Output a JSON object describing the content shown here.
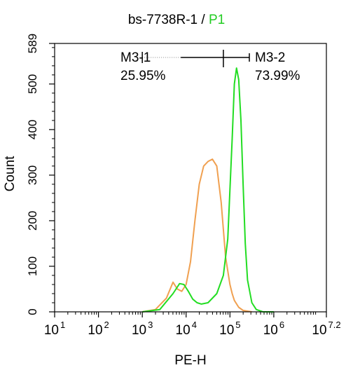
{
  "chart_data": {
    "type": "line",
    "title": {
      "main": "bs-7738R-1",
      "sep": " / ",
      "gate": "P1"
    },
    "xlabel": "PE-H",
    "ylabel": "Count",
    "x_scale": "log10",
    "xlim": [
      1,
      7.2
    ],
    "ylim": [
      0,
      589
    ],
    "x_ticks": [
      {
        "base": "10",
        "exp": "1",
        "value": 1
      },
      {
        "base": "10",
        "exp": "2",
        "value": 2
      },
      {
        "base": "10",
        "exp": "3",
        "value": 3
      },
      {
        "base": "10",
        "exp": "4",
        "value": 4
      },
      {
        "base": "10",
        "exp": "5",
        "value": 5
      },
      {
        "base": "10",
        "exp": "6",
        "value": 6
      },
      {
        "base": "10",
        "exp": "7.2",
        "value": 7.2
      }
    ],
    "y_ticks": [
      {
        "label": "0",
        "value": 0
      },
      {
        "label": "100",
        "value": 100
      },
      {
        "label": "200",
        "value": 200
      },
      {
        "label": "300",
        "value": 300
      },
      {
        "label": "400",
        "value": 400
      },
      {
        "label": "500",
        "value": 500
      },
      {
        "label": "589",
        "value": 589
      }
    ],
    "series": [
      {
        "color": "#f0a050",
        "x": [
          3.0,
          3.3,
          3.55,
          3.7,
          3.8,
          3.9,
          4.0,
          4.1,
          4.2,
          4.3,
          4.4,
          4.5,
          4.6,
          4.7,
          4.8,
          4.9,
          5.0,
          5.05,
          5.1,
          5.2,
          5.3,
          5.5
        ],
        "y": [
          0,
          5,
          30,
          65,
          50,
          45,
          60,
          110,
          200,
          280,
          320,
          330,
          335,
          320,
          240,
          120,
          60,
          40,
          25,
          10,
          3,
          0
        ]
      },
      {
        "color": "#22dd22",
        "x": [
          3.0,
          3.4,
          3.7,
          3.85,
          3.95,
          4.05,
          4.15,
          4.25,
          4.35,
          4.5,
          4.7,
          4.85,
          4.95,
          5.05,
          5.1,
          5.15,
          5.2,
          5.25,
          5.3,
          5.35,
          5.4,
          5.5,
          5.6,
          5.75,
          6.0
        ],
        "y": [
          0,
          5,
          40,
          62,
          60,
          45,
          28,
          20,
          17,
          20,
          40,
          80,
          160,
          380,
          500,
          535,
          510,
          420,
          280,
          150,
          70,
          20,
          5,
          0,
          0
        ]
      }
    ],
    "gates": [
      {
        "name": "M3-1",
        "percent": "25.95%",
        "range": [
          3.0,
          4.85
        ]
      },
      {
        "name": "M3-2",
        "percent": "73.99%",
        "range": [
          4.85,
          7.2
        ]
      }
    ]
  }
}
